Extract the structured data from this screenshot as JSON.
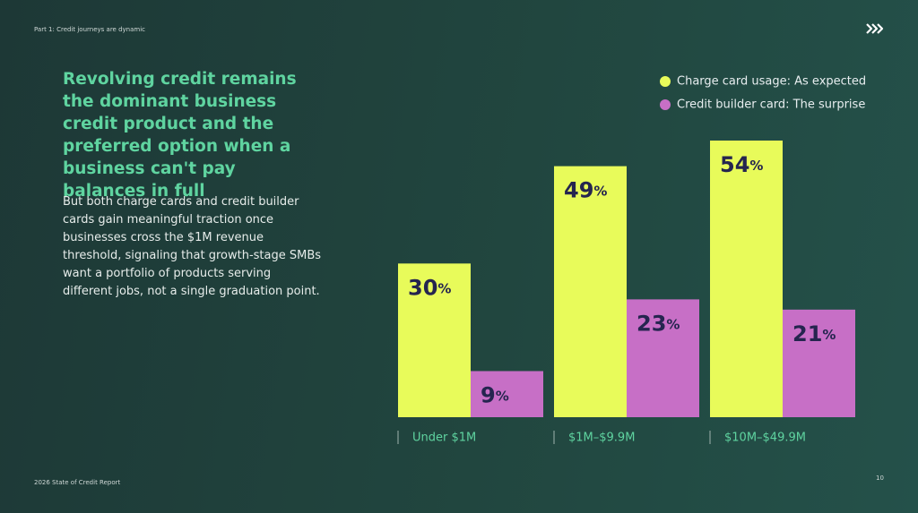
{
  "header": {
    "section": "Part 1: Credit journeys are dynamic"
  },
  "headline": "Revolving credit remains the dominant business credit product and the preferred option when a business can't pay balances in full",
  "body": "But both charge cards and credit builder cards gain meaningful traction once businesses cross the $1M revenue threshold, signaling that growth-stage SMBs want a portfolio of products serving different jobs, not a single graduation point.",
  "footer": {
    "report": "2026 State of Credit Report",
    "page": "10"
  },
  "chart_data": {
    "type": "bar",
    "categories": [
      "Under $1M",
      "$1M–$9.9M",
      "$10M–$49.9M"
    ],
    "series": [
      {
        "name": "Charge card usage: As expected",
        "color": "#e8fb5a",
        "values": [
          30,
          49,
          54
        ],
        "value_labels": [
          "30%",
          "49%",
          "54%"
        ]
      },
      {
        "name": "Credit builder card: The surprise",
        "color": "#c76fc6",
        "values": [
          9,
          23,
          21
        ],
        "value_labels": [
          "9%",
          "23%",
          "21%"
        ]
      }
    ],
    "ylim": [
      0,
      54
    ],
    "grid": false,
    "legend": "top-right"
  }
}
